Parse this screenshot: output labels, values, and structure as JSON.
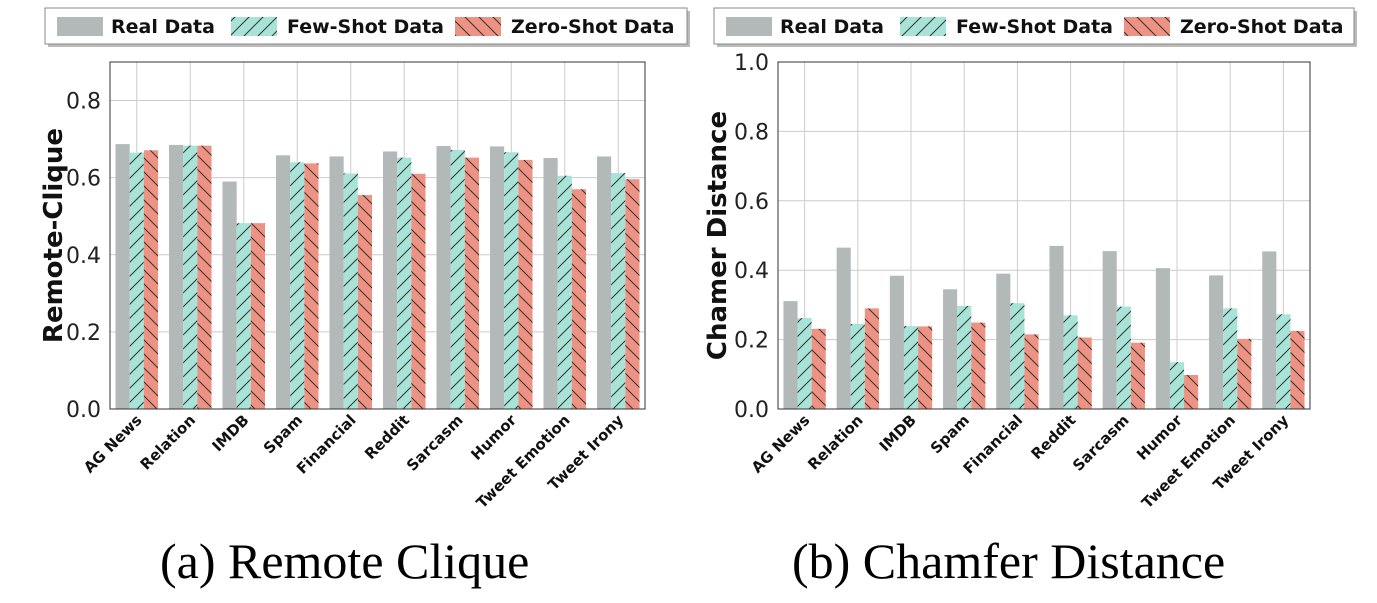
{
  "legend": [
    {
      "label": "Real Data",
      "color": "#b3b8b9",
      "hatch": "none"
    },
    {
      "label": "Few-Shot Data",
      "color": "#a8e3d8",
      "hatch": "forward"
    },
    {
      "label": "Zero-Shot Data",
      "color": "#ee9383",
      "hatch": "backward"
    }
  ],
  "captions": {
    "a": "(a) Remote Clique",
    "b": "(b) Chamfer Distance"
  },
  "chart_data": [
    {
      "type": "bar",
      "ylabel": "Remote-Clique",
      "ylim": [
        0,
        0.9
      ],
      "yticks": [
        "0.0",
        "0.2",
        "0.4",
        "0.6",
        "0.8"
      ],
      "grid": true,
      "legend_position": "top",
      "categories": [
        "AG News",
        "Relation",
        "IMDB",
        "Spam",
        "Financial",
        "Reddit",
        "Sarcasm",
        "Humor",
        "Tweet Emotion",
        "Tweet Irony"
      ],
      "series": [
        {
          "name": "Real Data",
          "values": [
            0.687,
            0.685,
            0.59,
            0.658,
            0.655,
            0.668,
            0.682,
            0.681,
            0.651,
            0.655
          ]
        },
        {
          "name": "Few-Shot Data",
          "values": [
            0.665,
            0.683,
            0.482,
            0.64,
            0.611,
            0.652,
            0.672,
            0.666,
            0.605,
            0.612
          ]
        },
        {
          "name": "Zero-Shot Data",
          "values": [
            0.671,
            0.683,
            0.482,
            0.637,
            0.555,
            0.61,
            0.652,
            0.646,
            0.57,
            0.596
          ]
        }
      ]
    },
    {
      "type": "bar",
      "ylabel": "Chamer Distance",
      "ylim": [
        0,
        1.0
      ],
      "yticks": [
        "0.0",
        "0.2",
        "0.4",
        "0.6",
        "0.8",
        "1.0"
      ],
      "grid": true,
      "legend_position": "top",
      "categories": [
        "AG News",
        "Relation",
        "IMDB",
        "Spam",
        "Financial",
        "Reddit",
        "Sarcasm",
        "Humor",
        "Tweet Emotion",
        "Tweet Irony"
      ],
      "series": [
        {
          "name": "Real Data",
          "values": [
            0.311,
            0.465,
            0.384,
            0.345,
            0.39,
            0.47,
            0.455,
            0.406,
            0.385,
            0.454
          ]
        },
        {
          "name": "Few-Shot Data",
          "values": [
            0.262,
            0.245,
            0.239,
            0.297,
            0.305,
            0.27,
            0.295,
            0.135,
            0.29,
            0.273
          ]
        },
        {
          "name": "Zero-Shot Data",
          "values": [
            0.231,
            0.29,
            0.238,
            0.249,
            0.215,
            0.206,
            0.191,
            0.098,
            0.202,
            0.225
          ]
        }
      ]
    }
  ]
}
